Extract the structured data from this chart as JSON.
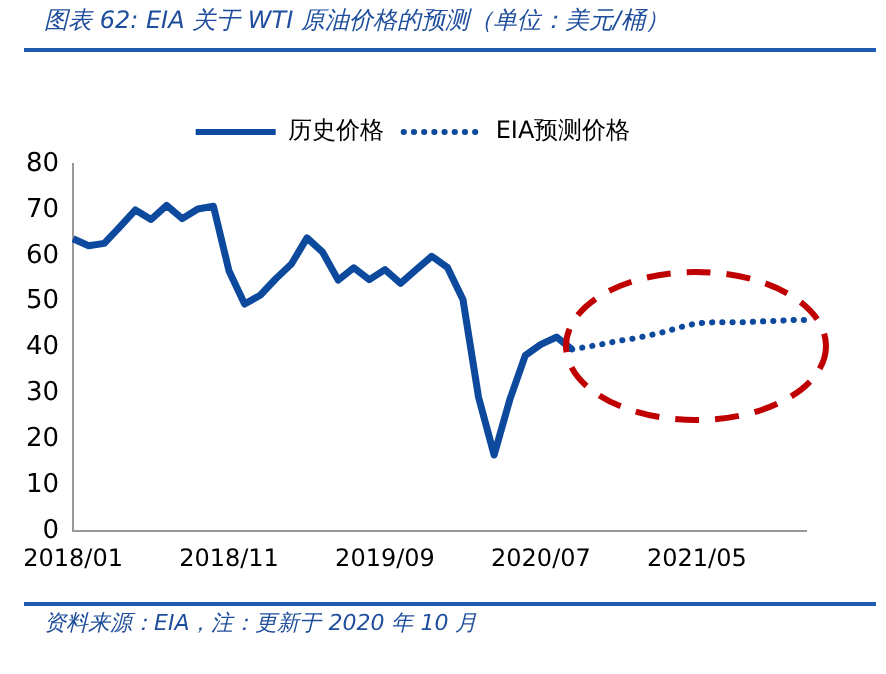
{
  "chart_data": {
    "type": "line",
    "title": "图表 62: EIA 关于 WTI 原油价格的预测（单位：美元/桶）",
    "categories": [
      "2018/01",
      null,
      null,
      null,
      null,
      null,
      null,
      null,
      null,
      null,
      "2018/11",
      null,
      null,
      null,
      null,
      null,
      null,
      null,
      null,
      null,
      "2019/09",
      null,
      null,
      null,
      null,
      null,
      null,
      null,
      null,
      null,
      "2020/07",
      null,
      null,
      null,
      null,
      null,
      null,
      null,
      null,
      null,
      "2021/05",
      null,
      null,
      null,
      null,
      null,
      null,
      null
    ],
    "series": [
      {
        "name": "历史价格",
        "color": "#0d4a9e",
        "line_style": "solid",
        "values": [
          63.7,
          62.2,
          62.7,
          66.3,
          70.0,
          67.9,
          71.0,
          68.1,
          70.2,
          70.8,
          56.7,
          49.5,
          51.4,
          55.0,
          58.2,
          63.9,
          60.8,
          54.7,
          57.4,
          54.8,
          57.0,
          54.0,
          57.0,
          59.9,
          57.5,
          50.5,
          29.2,
          16.6,
          28.6,
          38.3,
          40.7,
          42.3,
          39.6,
          null,
          null,
          null,
          null,
          null,
          null,
          null,
          null,
          null,
          null,
          null,
          null,
          null,
          null,
          null
        ]
      },
      {
        "name": "EIA预测价格",
        "color": "#0d4a9e",
        "line_style": "dotted",
        "values": [
          null,
          null,
          null,
          null,
          null,
          null,
          null,
          null,
          null,
          null,
          null,
          null,
          null,
          null,
          null,
          null,
          null,
          null,
          null,
          null,
          null,
          null,
          null,
          null,
          null,
          null,
          null,
          null,
          null,
          null,
          null,
          null,
          39.6,
          40.2,
          40.8,
          41.5,
          42.0,
          42.7,
          43.5,
          44.5,
          45.3,
          45.5,
          45.5,
          45.5,
          45.7,
          45.8,
          46.0,
          46.0
        ]
      }
    ],
    "ylim": [
      0,
      80
    ],
    "yticks": [
      0,
      10,
      20,
      30,
      40,
      50,
      60,
      70,
      80
    ],
    "grid": false,
    "legend": "top",
    "marker": "none",
    "annotations": [
      "资料来源：EIA，注：更新于 2020 年 10 月"
    ]
  }
}
